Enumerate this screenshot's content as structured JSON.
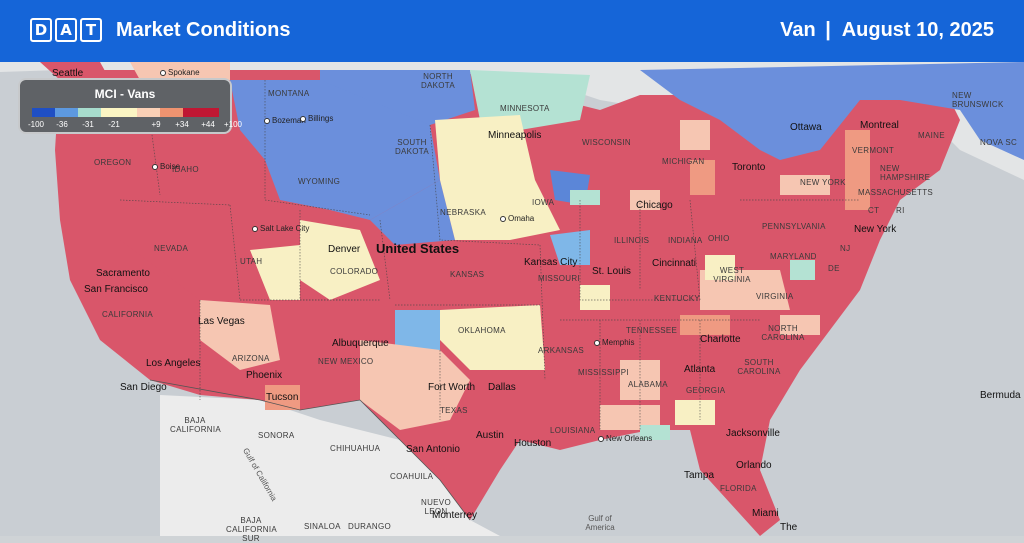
{
  "header": {
    "logo_letters": [
      "D",
      "A",
      "T"
    ],
    "title": "Market Conditions",
    "equipment": "Van",
    "separator": "|",
    "date": "August 10, 2025",
    "bg_color": "#1565d8"
  },
  "legend": {
    "title": "MCI - Vans",
    "colors": [
      "#1f4fc4",
      "#5d99e0",
      "#a7dccd",
      "#fbf5c3",
      "#fad0b6",
      "#ef9370",
      "#c01733"
    ],
    "ticks": [
      "-100",
      "-36",
      "-31",
      "-21",
      "+9",
      "+34",
      "+44",
      "+100"
    ]
  },
  "map": {
    "country_label": "United States",
    "colors": {
      "red": "#d9566a",
      "blue": "#6b8fdc",
      "lightblue": "#7fb7e8",
      "teal": "#b4e2d3",
      "yellow": "#f8f0c4",
      "peach": "#f6c6b2",
      "coral": "#ef9a82",
      "ocean": "#c9ced3",
      "land": "#e6e6e6"
    },
    "states": [
      "MONTANA",
      "NORTH DAKOTA",
      "MINNESOTA",
      "OREGON",
      "IDAHO",
      "SOUTH DAKOTA",
      "WYOMING",
      "WISCONSIN",
      "MICHIGAN",
      "NEBRASKA",
      "IOWA",
      "NEVADA",
      "UTAH",
      "COLORADO",
      "KANSAS",
      "ILLINOIS",
      "INDIANA",
      "OHIO",
      "PENNSYLVANIA",
      "NEW YORK",
      "VERMONT",
      "NEW HAMPSHIRE",
      "MAINE",
      "MASSACHUSETTS",
      "CT",
      "RI",
      "NJ",
      "MARYLAND",
      "DE",
      "WEST VIRGINIA",
      "VIRGINIA",
      "KENTUCKY",
      "MISSOURI",
      "CALIFORNIA",
      "ARIZONA",
      "NEW MEXICO",
      "OKLAHOMA",
      "ARKANSAS",
      "TENNESSEE",
      "NORTH CAROLINA",
      "SOUTH CAROLINA",
      "GEORGIA",
      "ALABAMA",
      "MISSISSIPPI",
      "LOUISIANA",
      "TEXAS",
      "FLORIDA",
      "NEW BRUNSWICK",
      "NOVA SC",
      "BAJA CALIFORNIA",
      "SONORA",
      "CHIHUAHUA",
      "COAHUILA",
      "NUEVO LEON",
      "SINALOA",
      "DURANGO",
      "BAJA CALIFORNIA SUR"
    ],
    "cities": [
      "Seattle",
      "Spokane",
      "Bozeman",
      "Billings",
      "Boise",
      "Minneapolis",
      "Omaha",
      "Salt Lake City",
      "Denver",
      "Sacramento",
      "San Francisco",
      "Las Vegas",
      "Los Angeles",
      "San Diego",
      "Phoenix",
      "Tucson",
      "Albuquerque",
      "Kansas City",
      "St. Louis",
      "Chicago",
      "Cincinnati",
      "Toronto",
      "Ottawa",
      "Montreal",
      "New York",
      "Fort Worth",
      "Dallas",
      "Austin",
      "San Antonio",
      "Houston",
      "New Orleans",
      "Memphis",
      "Atlanta",
      "Charlotte",
      "Jacksonville",
      "Orlando",
      "Tampa",
      "Miami",
      "Monterrey",
      "Bermuda",
      "The",
      "Gulf of America",
      "Gulf of California"
    ]
  }
}
